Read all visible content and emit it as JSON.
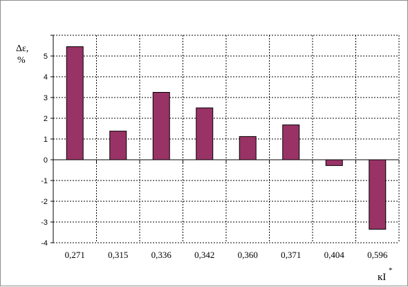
{
  "chart_data": {
    "type": "bar",
    "categories": [
      "0,271",
      "0,315",
      "0,336",
      "0,342",
      "0,360",
      "0,371",
      "0,404",
      "0,596"
    ],
    "values": [
      5.45,
      1.38,
      3.25,
      2.5,
      1.12,
      1.68,
      -0.28,
      -3.35
    ],
    "ylabel_line1": "Δε,",
    "ylabel_line2": "%",
    "xlabel": "кI",
    "xlabel_sup": "*",
    "ylim": [
      -4,
      6
    ],
    "yticks": [
      -4,
      -3,
      -2,
      -1,
      0,
      1,
      2,
      3,
      4,
      5
    ],
    "grid": true,
    "legend": "none",
    "colors": {
      "bar": "#993366",
      "bar_stroke": "#000000",
      "grid": "#000000",
      "axis": "#000000"
    }
  }
}
